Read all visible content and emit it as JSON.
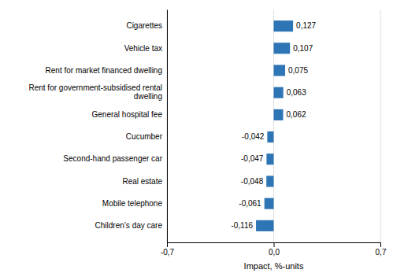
{
  "chart_data": {
    "type": "bar",
    "orientation": "horizontal",
    "categories": [
      "Children’s day care",
      "Mobile telephone",
      "Real estate",
      "Second-hand passenger car",
      "Cucumber",
      "General hospital fee",
      "Rent for government-subsidised rental\ndwelling",
      "Rent for market financed dwelling",
      "Vehicle tax",
      "Cigarettes"
    ],
    "values": [
      -0.116,
      -0.061,
      -0.048,
      -0.047,
      -0.042,
      0.062,
      0.063,
      0.075,
      0.107,
      0.127
    ],
    "value_labels": [
      "-0,116",
      "-0,061",
      "-0,048",
      "-0,047",
      "-0,042",
      "0,062",
      "0,063",
      "0,075",
      "0,107",
      "0,127"
    ],
    "data_labels": true,
    "color": "#2e75b6",
    "xlabel": "Impact, %-units",
    "xlim": [
      -0.7,
      0.7
    ],
    "xticks": [
      {
        "value": -0.7,
        "label": "-0,7"
      },
      {
        "value": 0.0,
        "label": "0,0"
      },
      {
        "value": 0.7,
        "label": "0,7"
      }
    ],
    "grid": true
  }
}
